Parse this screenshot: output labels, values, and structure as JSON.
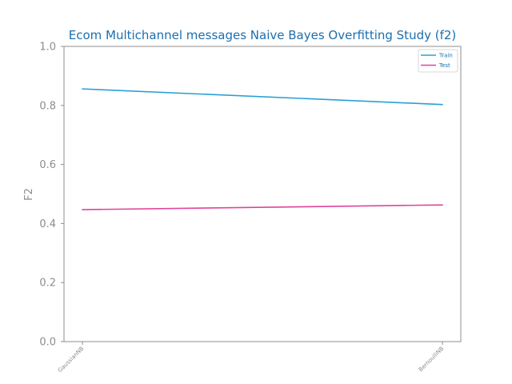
{
  "chart_data": {
    "type": "line",
    "title": "Ecom Multichannel messages Naive Bayes Overfitting Study (f2)",
    "xlabel": "",
    "ylabel": "F2",
    "categories": [
      "GaussianNB",
      "BernoulliNB"
    ],
    "ylim": [
      0,
      1
    ],
    "yticks": [
      "0.0",
      "0.2",
      "0.4",
      "0.6",
      "0.8",
      "1.0"
    ],
    "grid": false,
    "legend_position": "top-right",
    "series": [
      {
        "name": "Train",
        "values": [
          0.856,
          0.803
        ],
        "color": "#2a9fd6"
      },
      {
        "name": "Test",
        "values": [
          0.447,
          0.463
        ],
        "color": "#e0449a"
      }
    ]
  }
}
